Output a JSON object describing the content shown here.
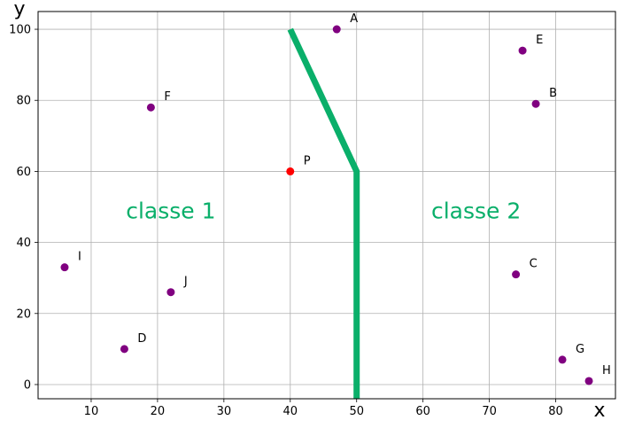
{
  "chart_data": {
    "type": "scatter",
    "title": "",
    "xlabel": "x",
    "ylabel": "y",
    "xlim": [
      2,
      89
    ],
    "ylim": [
      -4,
      105
    ],
    "xticks": [
      10,
      20,
      30,
      40,
      50,
      60,
      70,
      80
    ],
    "yticks": [
      0,
      20,
      40,
      60,
      80,
      100
    ],
    "grid": true,
    "legend": "none",
    "points": [
      {
        "label": "A",
        "x": 47,
        "y": 100,
        "color": "#800080"
      },
      {
        "label": "B",
        "x": 77,
        "y": 79,
        "color": "#800080"
      },
      {
        "label": "C",
        "x": 74,
        "y": 31,
        "color": "#800080"
      },
      {
        "label": "D",
        "x": 15,
        "y": 10,
        "color": "#800080"
      },
      {
        "label": "E",
        "x": 75,
        "y": 94,
        "color": "#800080"
      },
      {
        "label": "F",
        "x": 19,
        "y": 78,
        "color": "#800080"
      },
      {
        "label": "G",
        "x": 81,
        "y": 7,
        "color": "#800080"
      },
      {
        "label": "H",
        "x": 85,
        "y": 1,
        "color": "#800080"
      },
      {
        "label": "I",
        "x": 6,
        "y": 33,
        "color": "#800080"
      },
      {
        "label": "J",
        "x": 22,
        "y": 26,
        "color": "#800080"
      },
      {
        "label": "P",
        "x": 40,
        "y": 60,
        "color": "#ff0000"
      }
    ],
    "boundary": {
      "color": "#0aaf6a",
      "points": [
        [
          40,
          100
        ],
        [
          50,
          60
        ],
        [
          50,
          -4
        ]
      ]
    },
    "regions": [
      {
        "label": "classe 1",
        "x": 22,
        "y": 49,
        "color": "#0aaf6a"
      },
      {
        "label": "classe 2",
        "x": 68,
        "y": 49,
        "color": "#0aaf6a"
      }
    ]
  }
}
